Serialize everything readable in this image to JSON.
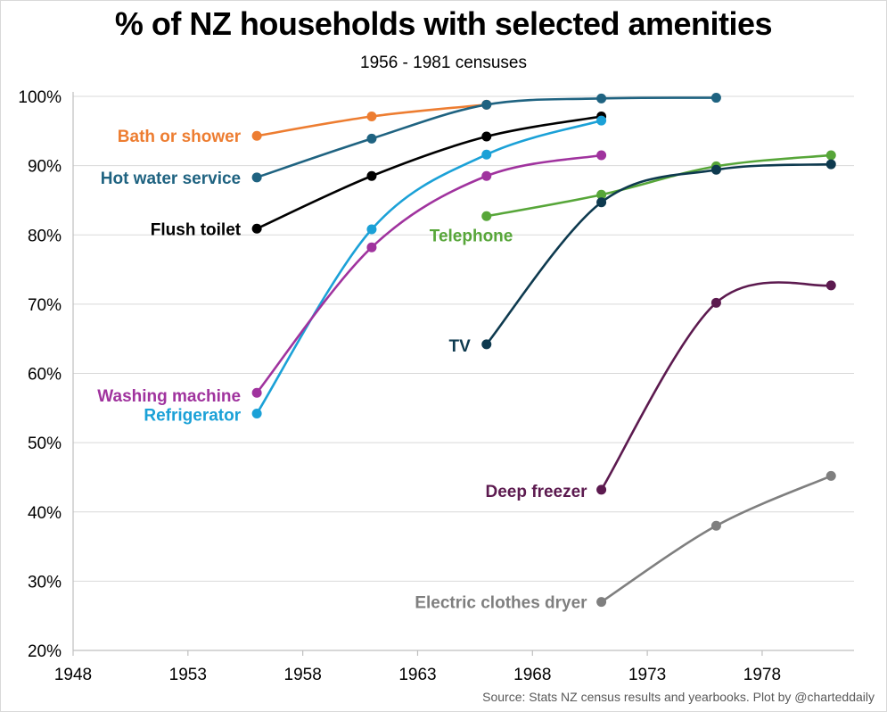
{
  "chart_data": {
    "type": "line",
    "title": "% of NZ households with selected amenities",
    "subtitle": "1956 - 1981 censuses",
    "source": "Source: Stats NZ census results and yearbooks.  Plot by @charteddaily",
    "xlim": [
      1948,
      1982
    ],
    "ylim": [
      20,
      100
    ],
    "x_ticks": [
      1948,
      1953,
      1958,
      1963,
      1968,
      1973,
      1978
    ],
    "y_ticks": [
      20,
      30,
      40,
      50,
      60,
      70,
      80,
      90,
      100
    ],
    "y_tick_suffix": "%",
    "grid": "horizontal",
    "legend": "inline-labels",
    "series": [
      {
        "name": "Bath or shower",
        "color": "#ED7D31",
        "x": [
          1956,
          1961,
          1966
        ],
        "y": [
          94.3,
          97.1,
          98.8
        ]
      },
      {
        "name": "Hot water service",
        "color": "#1F6381",
        "x": [
          1956,
          1961,
          1966,
          1971,
          1976
        ],
        "y": [
          88.3,
          93.9,
          98.8,
          99.7,
          99.8
        ]
      },
      {
        "name": "Flush toilet",
        "color": "#000000",
        "x": [
          1956,
          1961,
          1966,
          1971
        ],
        "y": [
          80.9,
          88.5,
          94.2,
          97.1
        ]
      },
      {
        "name": "Refrigerator",
        "color": "#1BA1D7",
        "x": [
          1956,
          1961,
          1966,
          1971
        ],
        "y": [
          54.2,
          80.8,
          91.6,
          96.5
        ]
      },
      {
        "name": "Washing machine",
        "color": "#A0339E",
        "x": [
          1956,
          1961,
          1966,
          1971
        ],
        "y": [
          57.2,
          78.2,
          88.5,
          91.5
        ]
      },
      {
        "name": "Telephone",
        "color": "#57A639",
        "x": [
          1966,
          1971,
          1976,
          1981
        ],
        "y": [
          82.7,
          85.8,
          89.9,
          91.5
        ]
      },
      {
        "name": "TV",
        "color": "#0E3A4F",
        "x": [
          1966,
          1971,
          1976,
          1981
        ],
        "y": [
          64.2,
          84.7,
          89.4,
          90.2
        ]
      },
      {
        "name": "Deep freezer",
        "color": "#5C1A4F",
        "x": [
          1971,
          1976,
          1981
        ],
        "y": [
          43.2,
          70.2,
          72.7
        ]
      },
      {
        "name": "Electric clothes dryer",
        "color": "#7F7F7F",
        "x": [
          1971,
          1976,
          1981
        ],
        "y": [
          27.0,
          38.0,
          45.2
        ]
      }
    ]
  }
}
